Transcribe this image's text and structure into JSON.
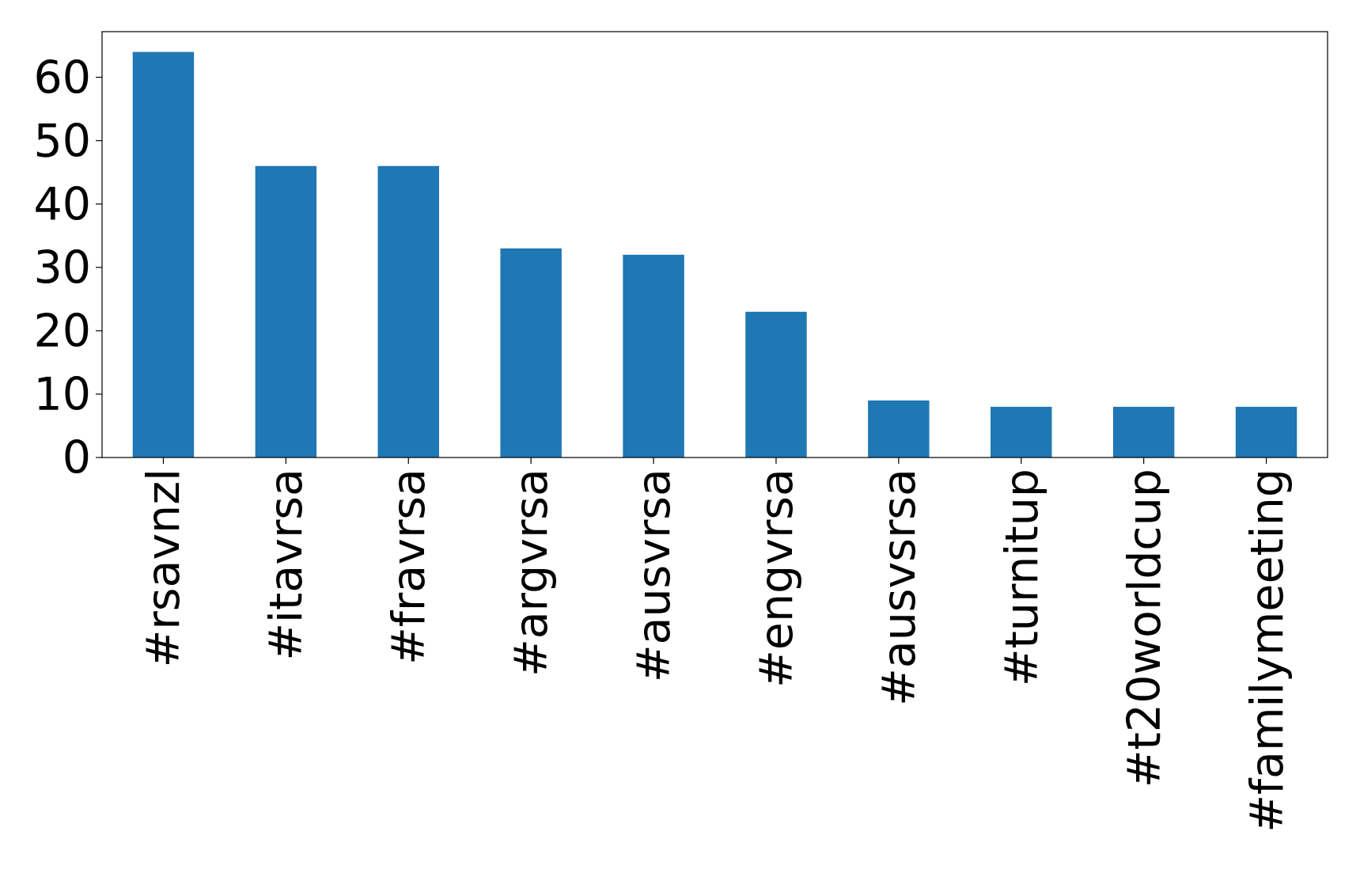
{
  "chart_data": {
    "type": "bar",
    "categories": [
      "#rsavnzl",
      "#itavrsa",
      "#fravrsa",
      "#argvrsa",
      "#ausvrsa",
      "#engvrsa",
      "#ausvsrsa",
      "#turnitup",
      "#t20worldcup",
      "#familymeeting"
    ],
    "values": [
      64,
      46,
      46,
      33,
      32,
      23,
      9,
      8,
      8,
      8
    ],
    "color": "#1f77b4",
    "ylim": [
      0,
      67.2
    ],
    "yticks": [
      0,
      10,
      20,
      30,
      40,
      50,
      60
    ]
  }
}
